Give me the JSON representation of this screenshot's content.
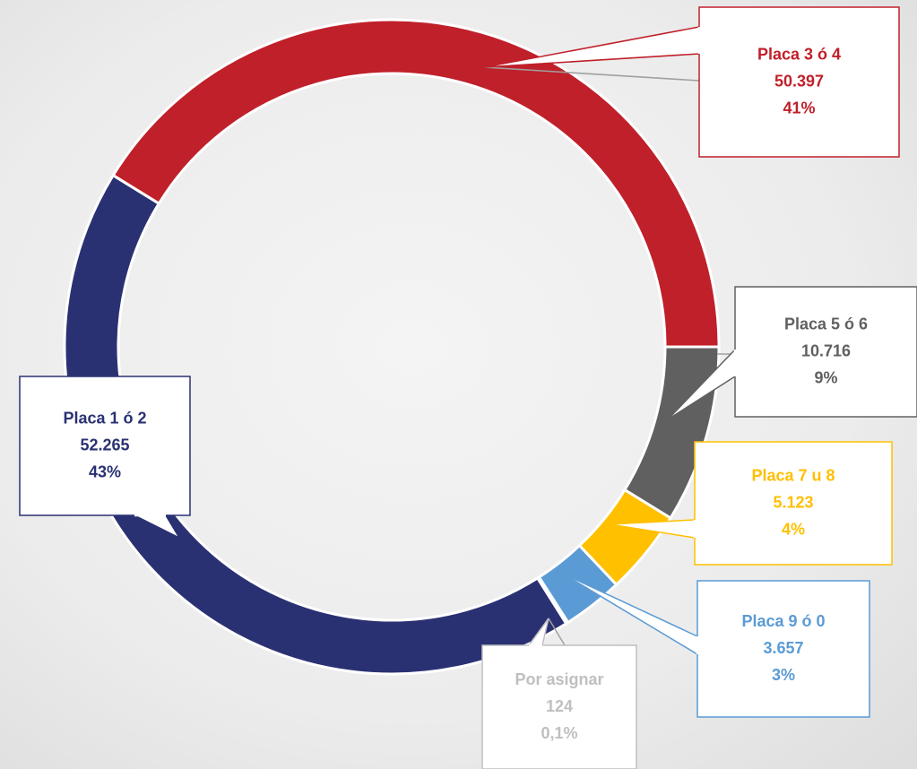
{
  "chart_data": {
    "type": "donut",
    "categories": [
      "Placa 1 ó 2",
      "Placa 3 ó 4",
      "Placa 5 ó 6",
      "Placa 7 u 8",
      "Placa 9 ó 0",
      "Por asignar"
    ],
    "values": [
      52265,
      50397,
      10716,
      5123,
      3657,
      124
    ],
    "value_labels": [
      "52.265",
      "50.397",
      "10.716",
      "5.123",
      "3.657",
      "124"
    ],
    "percentages": [
      43,
      41,
      9,
      4,
      3,
      0.1
    ],
    "percentage_labels": [
      "43%",
      "41%",
      "9%",
      "4%",
      "3%",
      "0,1%"
    ],
    "colors": [
      "#2a3173",
      "#c0202a",
      "#606060",
      "#ffc000",
      "#5b9bd5",
      "#a5a5a5"
    ],
    "label_colors": [
      "#2a3173",
      "#c0202a",
      "#606060",
      "#ffc000",
      "#5b9bd5",
      "#bfbfbf"
    ]
  }
}
